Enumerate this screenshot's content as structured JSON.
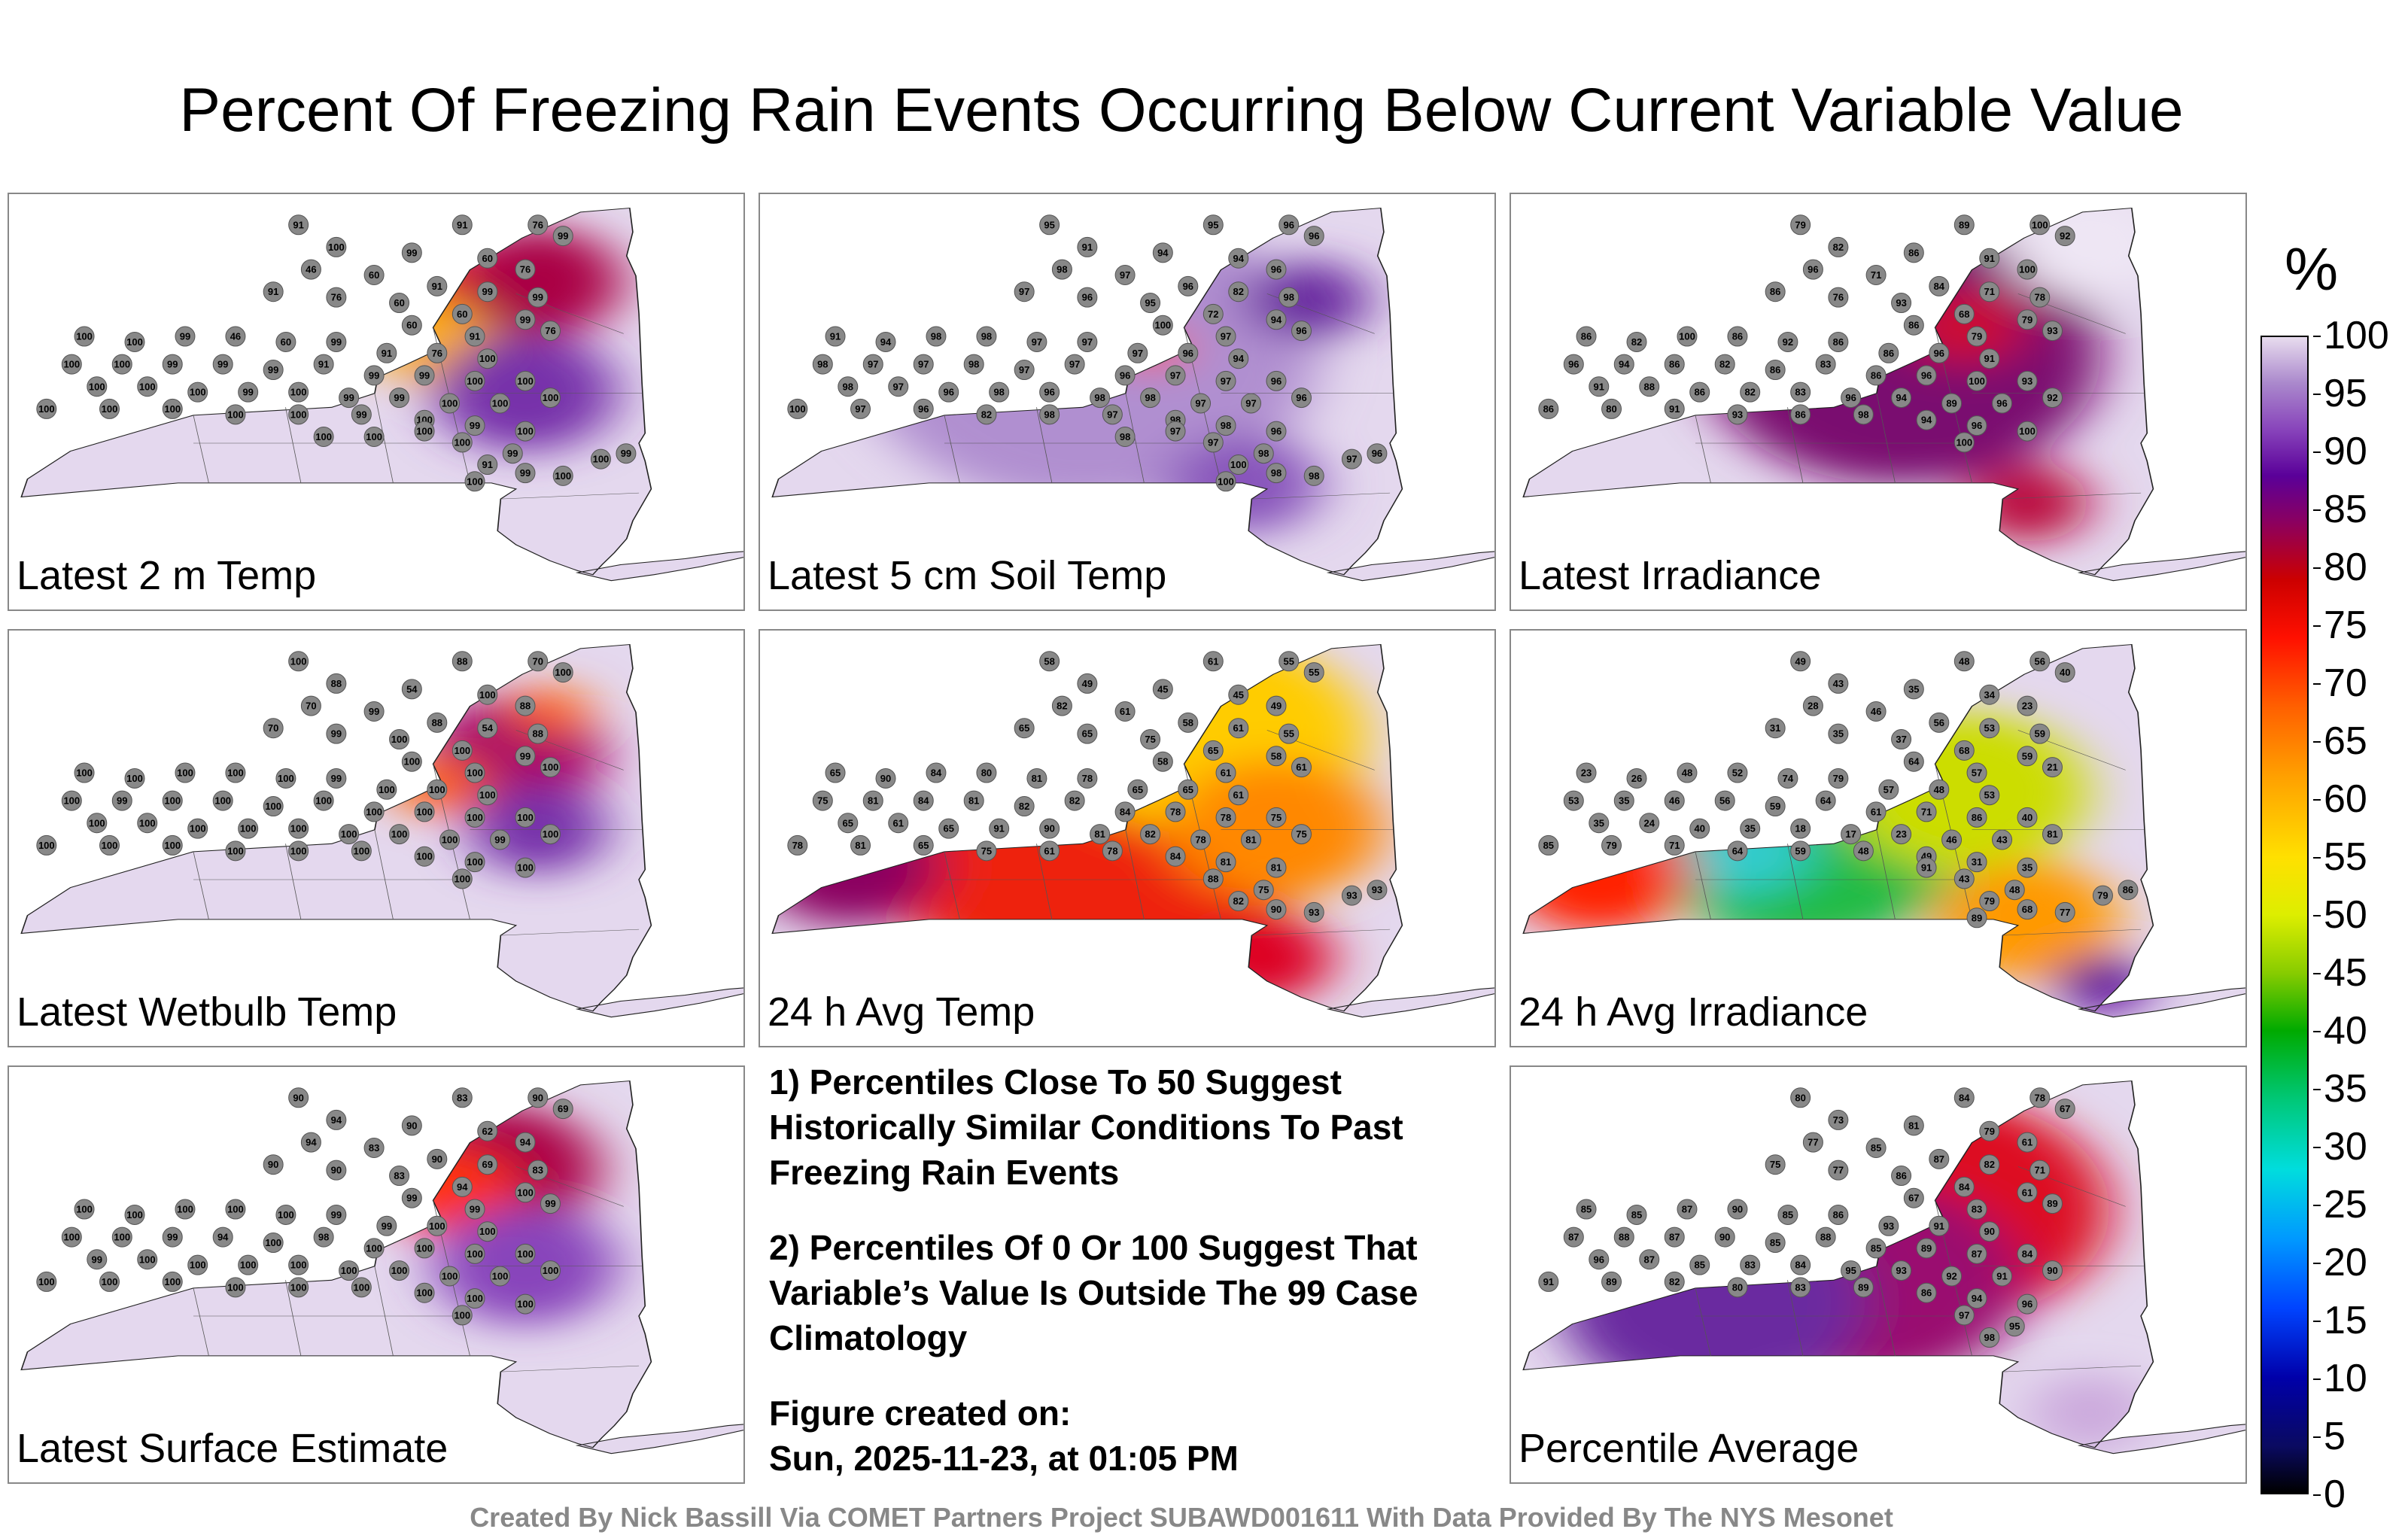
{
  "title": "Percent Of Freezing Rain Events Occurring Below Current Variable Value",
  "panels": [
    {
      "label": "Latest 2 m Temp",
      "tone": "hot_ne",
      "values": [
        91,
        91,
        76,
        99,
        100,
        99,
        60,
        76,
        46,
        60,
        91,
        99,
        99,
        91,
        76,
        60,
        60,
        99,
        60,
        91,
        76,
        100,
        100,
        99,
        46,
        60,
        99,
        91,
        76,
        100,
        100,
        100,
        99,
        99,
        99,
        91,
        99,
        99,
        100,
        100,
        100,
        100,
        100,
        99,
        100,
        99,
        99,
        100,
        100,
        100,
        100,
        100,
        100,
        100,
        100,
        99,
        100,
        99,
        100,
        100,
        99,
        91,
        99,
        100,
        100,
        99,
        100,
        100,
        100,
        100
      ]
    },
    {
      "label": "Latest 5 cm Soil Temp",
      "tone": "purple",
      "values": [
        95,
        95,
        96,
        96,
        91,
        94,
        94,
        96,
        98,
        97,
        96,
        82,
        98,
        97,
        96,
        95,
        72,
        94,
        100,
        97,
        96,
        91,
        94,
        98,
        98,
        97,
        97,
        97,
        96,
        94,
        98,
        97,
        97,
        98,
        97,
        97,
        96,
        97,
        97,
        96,
        98,
        97,
        96,
        98,
        96,
        98,
        98,
        97,
        97,
        96,
        100,
        97,
        96,
        82,
        98,
        97,
        98,
        98,
        96,
        97,
        98,
        100,
        98,
        98,
        97,
        96,
        100,
        97,
        98
      ]
    },
    {
      "label": "Latest Irradiance",
      "tone": "irr",
      "values": [
        79,
        89,
        100,
        92,
        82,
        86,
        91,
        100,
        96,
        71,
        84,
        71,
        78,
        86,
        76,
        93,
        68,
        79,
        86,
        79,
        93,
        86,
        82,
        100,
        86,
        92,
        86,
        86,
        96,
        91,
        96,
        94,
        86,
        82,
        86,
        83,
        86,
        96,
        100,
        93,
        91,
        88,
        86,
        82,
        83,
        96,
        94,
        89,
        96,
        92,
        86,
        80,
        91,
        93,
        86,
        98,
        94,
        96,
        100,
        100
      ]
    },
    {
      "label": "Latest Wetbulb Temp",
      "tone": "wet",
      "values": [
        100,
        88,
        70,
        100,
        88,
        54,
        100,
        88,
        70,
        99,
        88,
        54,
        88,
        70,
        99,
        100,
        100,
        99,
        100,
        100,
        100,
        100,
        100,
        100,
        100,
        100,
        99,
        100,
        100,
        100,
        100,
        99,
        100,
        100,
        100,
        100,
        100,
        100,
        100,
        100,
        100,
        100,
        100,
        100,
        100,
        100,
        100,
        100,
        99,
        100,
        100,
        100,
        100,
        100,
        100,
        100,
        100,
        100,
        100,
        100
      ]
    },
    {
      "label": "24 h Avg Temp",
      "tone": "warm",
      "values": [
        58,
        61,
        55,
        55,
        49,
        45,
        45,
        49,
        82,
        61,
        58,
        61,
        55,
        65,
        65,
        75,
        65,
        58,
        58,
        61,
        61,
        65,
        90,
        84,
        80,
        81,
        78,
        65,
        65,
        61,
        75,
        81,
        84,
        81,
        82,
        82,
        84,
        78,
        78,
        75,
        65,
        61,
        65,
        91,
        90,
        81,
        82,
        78,
        81,
        75,
        78,
        81,
        65,
        75,
        61,
        78,
        84,
        81,
        81,
        88,
        75,
        82,
        90,
        93,
        93,
        93
      ]
    },
    {
      "label": "24 h Avg Irradiance",
      "tone": "mixed",
      "values": [
        49,
        48,
        56,
        40,
        43,
        35,
        34,
        23,
        28,
        46,
        56,
        53,
        59,
        31,
        35,
        37,
        68,
        59,
        64,
        57,
        21,
        23,
        26,
        48,
        52,
        74,
        79,
        57,
        48,
        53,
        53,
        35,
        46,
        56,
        59,
        64,
        61,
        71,
        86,
        40,
        35,
        24,
        40,
        35,
        18,
        17,
        23,
        46,
        43,
        81,
        85,
        79,
        71,
        64,
        59,
        48,
        49,
        31,
        35,
        43,
        48,
        79,
        68,
        77,
        79,
        86,
        89,
        91
      ]
    },
    {
      "label": "Latest Surface Estimate",
      "tone": "hot_ne2",
      "values": [
        90,
        83,
        90,
        69,
        94,
        90,
        62,
        94,
        94,
        83,
        90,
        69,
        83,
        90,
        90,
        83,
        94,
        100,
        99,
        99,
        99,
        100,
        100,
        100,
        100,
        100,
        99,
        99,
        100,
        100,
        100,
        100,
        99,
        94,
        100,
        98,
        100,
        100,
        100,
        100,
        99,
        100,
        100,
        100,
        100,
        100,
        100,
        100,
        100,
        100,
        100,
        100,
        100,
        100,
        100,
        100,
        100,
        100,
        100,
        100
      ]
    },
    {
      "label": "Percentile Average",
      "tone": "avg",
      "values": [
        80,
        84,
        78,
        67,
        73,
        81,
        79,
        61,
        77,
        85,
        87,
        82,
        71,
        75,
        77,
        86,
        84,
        61,
        67,
        83,
        89,
        85,
        85,
        87,
        90,
        85,
        86,
        93,
        91,
        90,
        87,
        88,
        87,
        90,
        85,
        88,
        85,
        89,
        87,
        84,
        96,
        87,
        85,
        83,
        84,
        95,
        93,
        92,
        91,
        90,
        91,
        89,
        82,
        80,
        83,
        89,
        86,
        94,
        96,
        97,
        95,
        98
      ]
    }
  ],
  "notes": {
    "note1": "1) Percentiles Close To 50 Suggest Historically Similar Conditions To Past Freezing Rain Events",
    "note2": "2) Percentiles Of 0 Or 100 Suggest That Variable’s Value Is Outside The 99 Case Climatology",
    "created_label": "Figure created on:",
    "created_date": "Sun, 2025-11-23, at 01:05 PM"
  },
  "colorbar": {
    "unit": "%",
    "ticks": [
      "100",
      "95",
      "90",
      "85",
      "80",
      "75",
      "70",
      "65",
      "60",
      "55",
      "50",
      "45",
      "40",
      "35",
      "30",
      "25",
      "20",
      "15",
      "10",
      "5",
      "0"
    ]
  },
  "credit": "Created By Nick Bassill Via COMET Partners Project SUBAWD001611 With Data Provided By The NYS Mesonet"
}
